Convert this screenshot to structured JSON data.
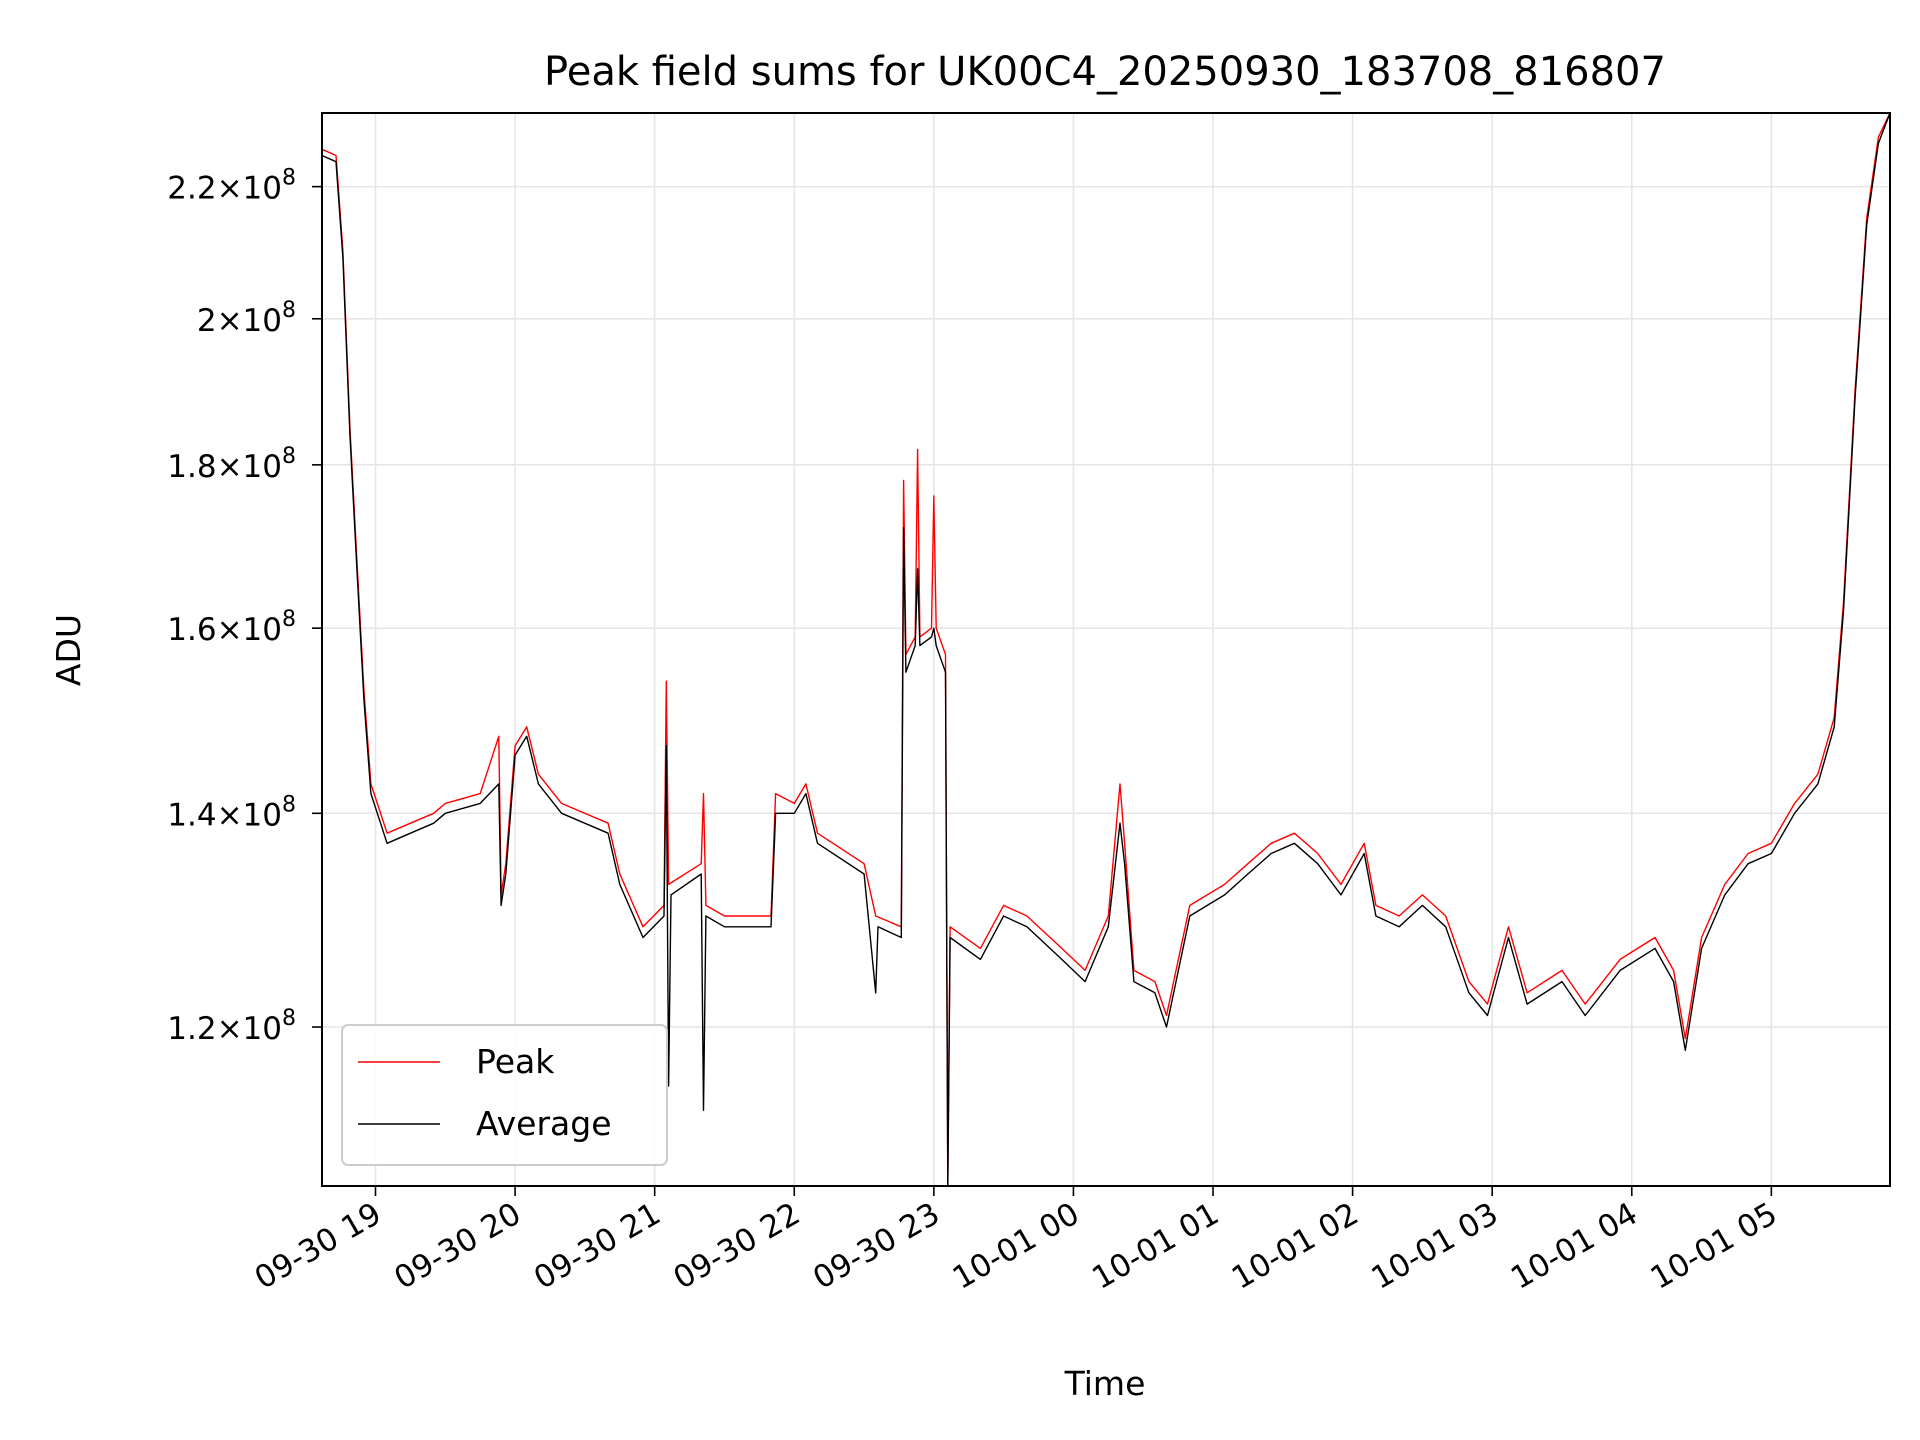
{
  "chart_data": {
    "type": "line",
    "title": "Peak field sums for UK00C4_20250930_183708_816807",
    "xlabel": "Time",
    "ylabel": "ADU",
    "yscale": "log",
    "ylim": [
      107000000,
      232000000
    ],
    "xlim": [
      "2025-09-30 18:37",
      "2025-10-01 05:51"
    ],
    "grid": true,
    "legend_position": "lower-left",
    "x_ticks": [
      "09-30 19",
      "09-30 20",
      "09-30 21",
      "09-30 22",
      "09-30 23",
      "10-01 00",
      "10-01 01",
      "10-01 02",
      "10-01 03",
      "10-01 04",
      "10-01 05"
    ],
    "y_ticks": [
      {
        "value": 120000000,
        "mantissa": "1.2",
        "exp": "8"
      },
      {
        "value": 140000000,
        "mantissa": "1.4",
        "exp": "8"
      },
      {
        "value": 160000000,
        "mantissa": "1.6",
        "exp": "8"
      },
      {
        "value": 180000000,
        "mantissa": "1.8",
        "exp": "8"
      },
      {
        "value": 200000000,
        "mantissa": "2",
        "exp": "8"
      },
      {
        "value": 220000000,
        "mantissa": "2.2",
        "exp": "8"
      }
    ],
    "series": [
      {
        "name": "Peak",
        "color": "#ff0000",
        "points": [
          [
            "2025-09-30 18:37",
            226000000
          ],
          [
            "2025-09-30 18:43",
            225000000
          ],
          [
            "2025-09-30 18:46",
            210000000
          ],
          [
            "2025-09-30 18:49",
            185000000
          ],
          [
            "2025-09-30 18:52",
            168000000
          ],
          [
            "2025-09-30 18:55",
            153000000
          ],
          [
            "2025-09-30 18:58",
            143000000
          ],
          [
            "2025-09-30 19:05",
            138000000
          ],
          [
            "2025-09-30 19:15",
            139000000
          ],
          [
            "2025-09-30 19:25",
            140000000
          ],
          [
            "2025-09-30 19:30",
            141000000
          ],
          [
            "2025-09-30 19:45",
            142000000
          ],
          [
            "2025-09-30 19:53",
            148000000
          ],
          [
            "2025-09-30 19:54",
            132000000
          ],
          [
            "2025-09-30 19:56",
            135000000
          ],
          [
            "2025-09-30 20:00",
            147000000
          ],
          [
            "2025-09-30 20:05",
            149000000
          ],
          [
            "2025-09-30 20:10",
            144000000
          ],
          [
            "2025-09-30 20:20",
            141000000
          ],
          [
            "2025-09-30 20:40",
            139000000
          ],
          [
            "2025-09-30 20:45",
            134000000
          ],
          [
            "2025-09-30 20:55",
            129000000
          ],
          [
            "2025-09-30 21:04",
            131000000
          ],
          [
            "2025-09-30 21:05",
            154000000
          ],
          [
            "2025-09-30 21:06",
            133000000
          ],
          [
            "2025-09-30 21:20",
            135000000
          ],
          [
            "2025-09-30 21:21",
            142000000
          ],
          [
            "2025-09-30 21:22",
            131000000
          ],
          [
            "2025-09-30 21:30",
            130000000
          ],
          [
            "2025-09-30 21:50",
            130000000
          ],
          [
            "2025-09-30 21:52",
            142000000
          ],
          [
            "2025-09-30 22:00",
            141000000
          ],
          [
            "2025-09-30 22:05",
            143000000
          ],
          [
            "2025-09-30 22:10",
            138000000
          ],
          [
            "2025-09-30 22:30",
            135000000
          ],
          [
            "2025-09-30 22:35",
            130000000
          ],
          [
            "2025-09-30 22:46",
            129000000
          ],
          [
            "2025-09-30 22:47",
            178000000
          ],
          [
            "2025-09-30 22:48",
            157000000
          ],
          [
            "2025-09-30 22:52",
            159000000
          ],
          [
            "2025-09-30 22:53",
            182000000
          ],
          [
            "2025-09-30 22:54",
            159000000
          ],
          [
            "2025-09-30 22:59",
            160000000
          ],
          [
            "2025-09-30 23:00",
            176000000
          ],
          [
            "2025-09-30 23:01",
            160000000
          ],
          [
            "2025-09-30 23:05",
            157000000
          ],
          [
            "2025-09-30 23:06",
            107000000
          ],
          [
            "2025-09-30 23:07",
            129000000
          ],
          [
            "2025-09-30 23:20",
            127000000
          ],
          [
            "2025-09-30 23:30",
            131000000
          ],
          [
            "2025-09-30 23:40",
            130000000
          ],
          [
            "2025-09-30 23:55",
            127000000
          ],
          [
            "2025-10-01 00:05",
            125000000
          ],
          [
            "2025-10-01 00:15",
            130000000
          ],
          [
            "2025-10-01 00:20",
            143000000
          ],
          [
            "2025-10-01 00:22",
            137000000
          ],
          [
            "2025-10-01 00:26",
            125000000
          ],
          [
            "2025-10-01 00:35",
            124000000
          ],
          [
            "2025-10-01 00:40",
            121000000
          ],
          [
            "2025-10-01 00:50",
            131000000
          ],
          [
            "2025-10-01 01:05",
            133000000
          ],
          [
            "2025-10-01 01:15",
            135000000
          ],
          [
            "2025-10-01 01:25",
            137000000
          ],
          [
            "2025-10-01 01:35",
            138000000
          ],
          [
            "2025-10-01 01:45",
            136000000
          ],
          [
            "2025-10-01 01:55",
            133000000
          ],
          [
            "2025-10-01 02:05",
            137000000
          ],
          [
            "2025-10-01 02:10",
            131000000
          ],
          [
            "2025-10-01 02:20",
            130000000
          ],
          [
            "2025-10-01 02:30",
            132000000
          ],
          [
            "2025-10-01 02:40",
            130000000
          ],
          [
            "2025-10-01 02:50",
            124000000
          ],
          [
            "2025-10-01 02:58",
            122000000
          ],
          [
            "2025-10-01 03:07",
            129000000
          ],
          [
            "2025-10-01 03:15",
            123000000
          ],
          [
            "2025-10-01 03:30",
            125000000
          ],
          [
            "2025-10-01 03:40",
            122000000
          ],
          [
            "2025-10-01 03:55",
            126000000
          ],
          [
            "2025-10-01 04:10",
            128000000
          ],
          [
            "2025-10-01 04:18",
            125000000
          ],
          [
            "2025-10-01 04:23",
            119000000
          ],
          [
            "2025-10-01 04:30",
            128000000
          ],
          [
            "2025-10-01 04:40",
            133000000
          ],
          [
            "2025-10-01 04:50",
            136000000
          ],
          [
            "2025-10-01 05:00",
            137000000
          ],
          [
            "2025-10-01 05:10",
            141000000
          ],
          [
            "2025-10-01 05:20",
            144000000
          ],
          [
            "2025-10-01 05:27",
            150000000
          ],
          [
            "2025-10-01 05:31",
            163000000
          ],
          [
            "2025-10-01 05:36",
            190000000
          ],
          [
            "2025-10-01 05:41",
            215000000
          ],
          [
            "2025-10-01 05:46",
            228000000
          ],
          [
            "2025-10-01 05:51",
            232000000
          ]
        ]
      },
      {
        "name": "Average",
        "color": "#000000",
        "points": [
          [
            "2025-09-30 18:37",
            225000000
          ],
          [
            "2025-09-30 18:43",
            224000000
          ],
          [
            "2025-09-30 18:46",
            209000000
          ],
          [
            "2025-09-30 18:49",
            184000000
          ],
          [
            "2025-09-30 18:52",
            167000000
          ],
          [
            "2025-09-30 18:55",
            152000000
          ],
          [
            "2025-09-30 18:58",
            142000000
          ],
          [
            "2025-09-30 19:05",
            137000000
          ],
          [
            "2025-09-30 19:15",
            138000000
          ],
          [
            "2025-09-30 19:25",
            139000000
          ],
          [
            "2025-09-30 19:30",
            140000000
          ],
          [
            "2025-09-30 19:45",
            141000000
          ],
          [
            "2025-09-30 19:53",
            143000000
          ],
          [
            "2025-09-30 19:54",
            131000000
          ],
          [
            "2025-09-30 19:56",
            134000000
          ],
          [
            "2025-09-30 20:00",
            146000000
          ],
          [
            "2025-09-30 20:05",
            148000000
          ],
          [
            "2025-09-30 20:10",
            143000000
          ],
          [
            "2025-09-30 20:20",
            140000000
          ],
          [
            "2025-09-30 20:40",
            138000000
          ],
          [
            "2025-09-30 20:45",
            133000000
          ],
          [
            "2025-09-30 20:55",
            128000000
          ],
          [
            "2025-09-30 21:04",
            130000000
          ],
          [
            "2025-09-30 21:05",
            147000000
          ],
          [
            "2025-09-30 21:06",
            115000000
          ],
          [
            "2025-09-30 21:07",
            132000000
          ],
          [
            "2025-09-30 21:20",
            134000000
          ],
          [
            "2025-09-30 21:21",
            113000000
          ],
          [
            "2025-09-30 21:22",
            130000000
          ],
          [
            "2025-09-30 21:30",
            129000000
          ],
          [
            "2025-09-30 21:50",
            129000000
          ],
          [
            "2025-09-30 21:52",
            140000000
          ],
          [
            "2025-09-30 22:00",
            140000000
          ],
          [
            "2025-09-30 22:05",
            142000000
          ],
          [
            "2025-09-30 22:10",
            137000000
          ],
          [
            "2025-09-30 22:30",
            134000000
          ],
          [
            "2025-09-30 22:35",
            123000000
          ],
          [
            "2025-09-30 22:36",
            129000000
          ],
          [
            "2025-09-30 22:46",
            128000000
          ],
          [
            "2025-09-30 22:47",
            172000000
          ],
          [
            "2025-09-30 22:48",
            155000000
          ],
          [
            "2025-09-30 22:52",
            158000000
          ],
          [
            "2025-09-30 22:53",
            167000000
          ],
          [
            "2025-09-30 22:54",
            158000000
          ],
          [
            "2025-09-30 22:59",
            159000000
          ],
          [
            "2025-09-30 23:00",
            160000000
          ],
          [
            "2025-09-30 23:01",
            158000000
          ],
          [
            "2025-09-30 23:05",
            155000000
          ],
          [
            "2025-09-30 23:06",
            107000000
          ],
          [
            "2025-09-30 23:07",
            128000000
          ],
          [
            "2025-09-30 23:20",
            126000000
          ],
          [
            "2025-09-30 23:30",
            130000000
          ],
          [
            "2025-09-30 23:40",
            129000000
          ],
          [
            "2025-09-30 23:55",
            126000000
          ],
          [
            "2025-10-01 00:05",
            124000000
          ],
          [
            "2025-10-01 00:15",
            129000000
          ],
          [
            "2025-10-01 00:20",
            139000000
          ],
          [
            "2025-10-01 00:22",
            135000000
          ],
          [
            "2025-10-01 00:26",
            124000000
          ],
          [
            "2025-10-01 00:35",
            123000000
          ],
          [
            "2025-10-01 00:40",
            120000000
          ],
          [
            "2025-10-01 00:50",
            130000000
          ],
          [
            "2025-10-01 01:05",
            132000000
          ],
          [
            "2025-10-01 01:15",
            134000000
          ],
          [
            "2025-10-01 01:25",
            136000000
          ],
          [
            "2025-10-01 01:35",
            137000000
          ],
          [
            "2025-10-01 01:45",
            135000000
          ],
          [
            "2025-10-01 01:55",
            132000000
          ],
          [
            "2025-10-01 02:05",
            136000000
          ],
          [
            "2025-10-01 02:10",
            130000000
          ],
          [
            "2025-10-01 02:20",
            129000000
          ],
          [
            "2025-10-01 02:30",
            131000000
          ],
          [
            "2025-10-01 02:40",
            129000000
          ],
          [
            "2025-10-01 02:50",
            123000000
          ],
          [
            "2025-10-01 02:58",
            121000000
          ],
          [
            "2025-10-01 03:07",
            128000000
          ],
          [
            "2025-10-01 03:15",
            122000000
          ],
          [
            "2025-10-01 03:30",
            124000000
          ],
          [
            "2025-10-01 03:40",
            121000000
          ],
          [
            "2025-10-01 03:55",
            125000000
          ],
          [
            "2025-10-01 04:10",
            127000000
          ],
          [
            "2025-10-01 04:18",
            124000000
          ],
          [
            "2025-10-01 04:23",
            118000000
          ],
          [
            "2025-10-01 04:30",
            127000000
          ],
          [
            "2025-10-01 04:40",
            132000000
          ],
          [
            "2025-10-01 04:50",
            135000000
          ],
          [
            "2025-10-01 05:00",
            136000000
          ],
          [
            "2025-10-01 05:10",
            140000000
          ],
          [
            "2025-10-01 05:20",
            143000000
          ],
          [
            "2025-10-01 05:27",
            149000000
          ],
          [
            "2025-10-01 05:31",
            162000000
          ],
          [
            "2025-10-01 05:36",
            189000000
          ],
          [
            "2025-10-01 05:41",
            214000000
          ],
          [
            "2025-10-01 05:46",
            227000000
          ],
          [
            "2025-10-01 05:51",
            232000000
          ]
        ]
      }
    ]
  }
}
